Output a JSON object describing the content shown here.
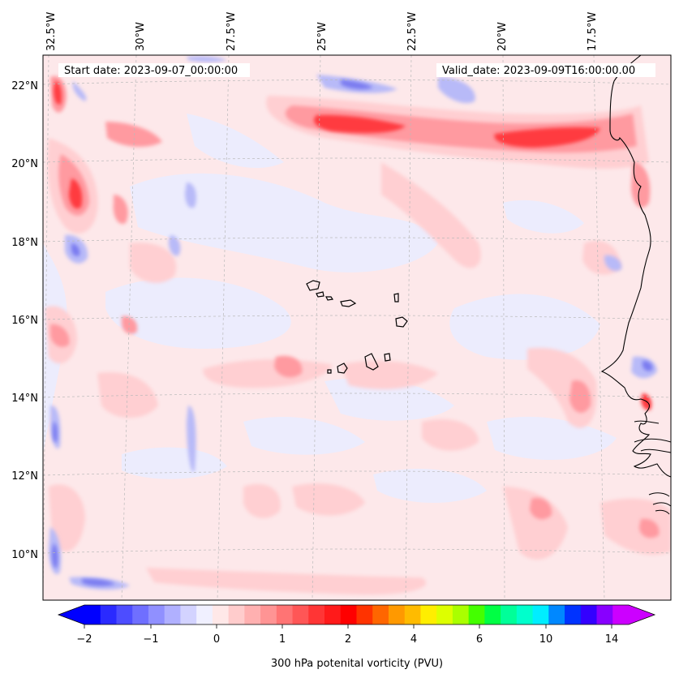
{
  "header": {
    "start_date": "Start date: 2023-09-07_00:00:00",
    "valid_date": "Valid_date: 2023-09-09T16:00:00.00"
  },
  "longitude_labels": [
    "32.5°W",
    "30°W",
    "27.5°W",
    "25°W",
    "22.5°W",
    "20°W",
    "17.5°W"
  ],
  "latitude_labels": [
    "22°N",
    "20°N",
    "18°N",
    "16°N",
    "14°N",
    "12°N",
    "10°N"
  ],
  "colorbar": {
    "title": "300 hPa potenital vorticity (PVU)",
    "tick_labels": [
      "−2",
      "−1",
      "0",
      "1",
      "2",
      "4",
      "6",
      "10",
      "14"
    ],
    "colors": [
      "#0000ff",
      "#2a2aff",
      "#4d4dff",
      "#6f6fff",
      "#9090ff",
      "#b0b0ff",
      "#d3d3ff",
      "#f0f0ff",
      "#ffe8e8",
      "#ffcccc",
      "#ffb0b0",
      "#ff9494",
      "#ff7474",
      "#ff5656",
      "#ff3535",
      "#ff1a1a",
      "#ff0000",
      "#ff3300",
      "#ff6600",
      "#ff9900",
      "#ffbb00",
      "#ffee00",
      "#ddff00",
      "#aaff00",
      "#44ff00",
      "#00ff44",
      "#00ff99",
      "#00ffcc",
      "#00eeff",
      "#0088ff",
      "#0033ff",
      "#3300ff",
      "#8800ff",
      "#cc00ff"
    ]
  },
  "map": {
    "features": [
      "Cape Verde islands",
      "West African coastline"
    ]
  }
}
